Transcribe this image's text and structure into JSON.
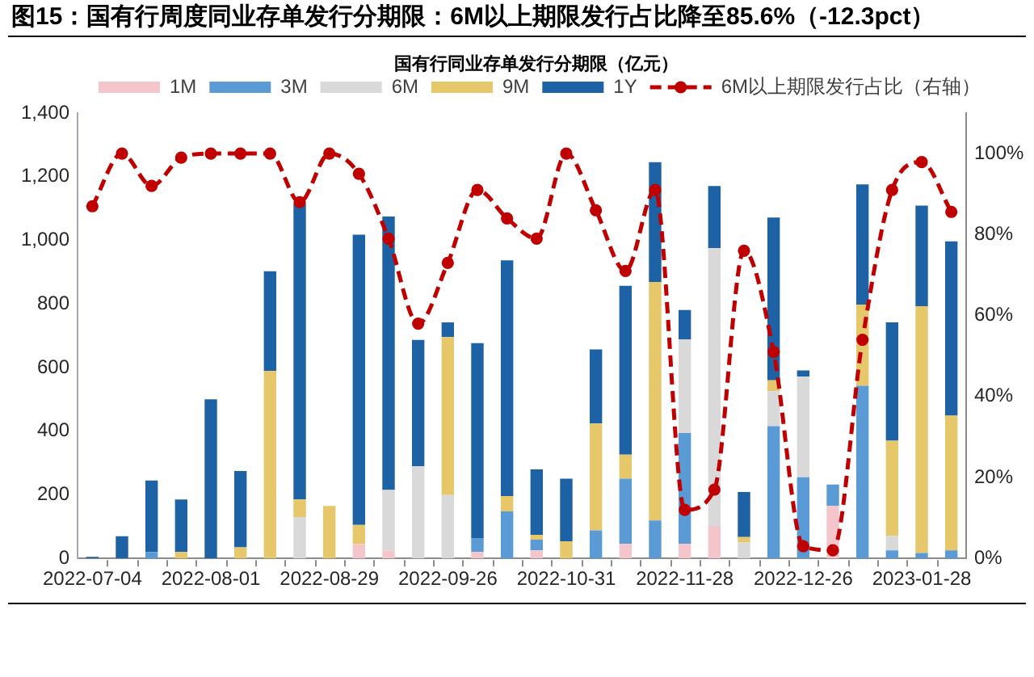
{
  "chart_data": {
    "type": "bar",
    "stacked": true,
    "title": "图15：国有行周度同业存单发行分期限：6M以上期限发行占比降至85.6%（-12.3pct）",
    "subtitle": "国有行同业存单发行分期限（亿元）",
    "categories": [
      "2022-07-04",
      null,
      null,
      null,
      "2022-08-01",
      null,
      null,
      null,
      "2022-08-29",
      null,
      null,
      null,
      "2022-09-26",
      null,
      null,
      null,
      "2022-10-31",
      null,
      null,
      null,
      "2022-11-28",
      null,
      null,
      null,
      "2022-12-26",
      null,
      null,
      null,
      "2023-01-28",
      null
    ],
    "series": [
      {
        "name": "1M",
        "color": "#f4c6cb",
        "values": [
          0,
          0,
          0,
          0,
          0,
          0,
          0,
          0,
          0,
          45,
          25,
          0,
          0,
          20,
          0,
          25,
          0,
          0,
          46,
          0,
          46,
          102,
          0,
          0,
          0,
          165,
          0,
          0,
          0,
          0
        ]
      },
      {
        "name": "3M",
        "color": "#5b9bd5",
        "values": [
          0,
          0,
          20,
          0,
          0,
          0,
          0,
          0,
          0,
          0,
          0,
          0,
          0,
          44,
          148,
          34,
          0,
          88,
          205,
          119,
          348,
          0,
          0,
          416,
          255,
          67,
          543,
          25,
          17,
          25
        ]
      },
      {
        "name": "6M",
        "color": "#d9d9d9",
        "values": [
          0,
          0,
          0,
          0,
          0,
          0,
          0,
          130,
          0,
          0,
          190,
          290,
          199,
          0,
          0,
          0,
          0,
          0,
          0,
          0,
          294,
          874,
          50,
          110,
          317,
          0,
          0,
          46,
          0,
          0
        ]
      },
      {
        "name": "9M",
        "color": "#e6c86a",
        "values": [
          0,
          0,
          0,
          20,
          0,
          35,
          590,
          55,
          165,
          60,
          0,
          0,
          497,
          0,
          48,
          15,
          54,
          336,
          75,
          750,
          0,
          0,
          17,
          34,
          0,
          0,
          255,
          299,
          776,
          424
        ]
      },
      {
        "name": "1Y",
        "color": "#1e62a6",
        "values": [
          5,
          70,
          225,
          165,
          500,
          240,
          313,
          930,
          0,
          913,
          860,
          397,
          46,
          613,
          741,
          206,
          197,
          233,
          531,
          377,
          93,
          195,
          142,
          512,
          19,
          0,
          378,
          372,
          316,
          548
        ]
      },
      {
        "name": "6M以上期限发行占比（右轴）",
        "type": "line",
        "axis": "y2",
        "color": "#c00000",
        "marker": "circle",
        "line_style": "dashed",
        "values": [
          87,
          100,
          92,
          99,
          100,
          100,
          100,
          88,
          100,
          95,
          79,
          58,
          73,
          91,
          84,
          79,
          100,
          86,
          71,
          91,
          12,
          17,
          76,
          51,
          3,
          2,
          54,
          91,
          97.9,
          85.6
        ]
      }
    ],
    "ylim": [
      0,
      1400
    ],
    "yticks": [
      0,
      200,
      400,
      600,
      800,
      {
        "value": 1000,
        "label": "1,000"
      },
      {
        "value": 1200,
        "label": "1,200"
      },
      {
        "value": 1400,
        "label": "1,400"
      }
    ],
    "y2lim": [
      0,
      110
    ],
    "y2ticks": [
      {
        "value": 0,
        "label": "0%"
      },
      {
        "value": 20,
        "label": "20%"
      },
      {
        "value": 40,
        "label": "40%"
      },
      {
        "value": 60,
        "label": "60%"
      },
      {
        "value": 80,
        "label": "80%"
      },
      {
        "value": 100,
        "label": "100%"
      }
    ],
    "legend": "top"
  }
}
